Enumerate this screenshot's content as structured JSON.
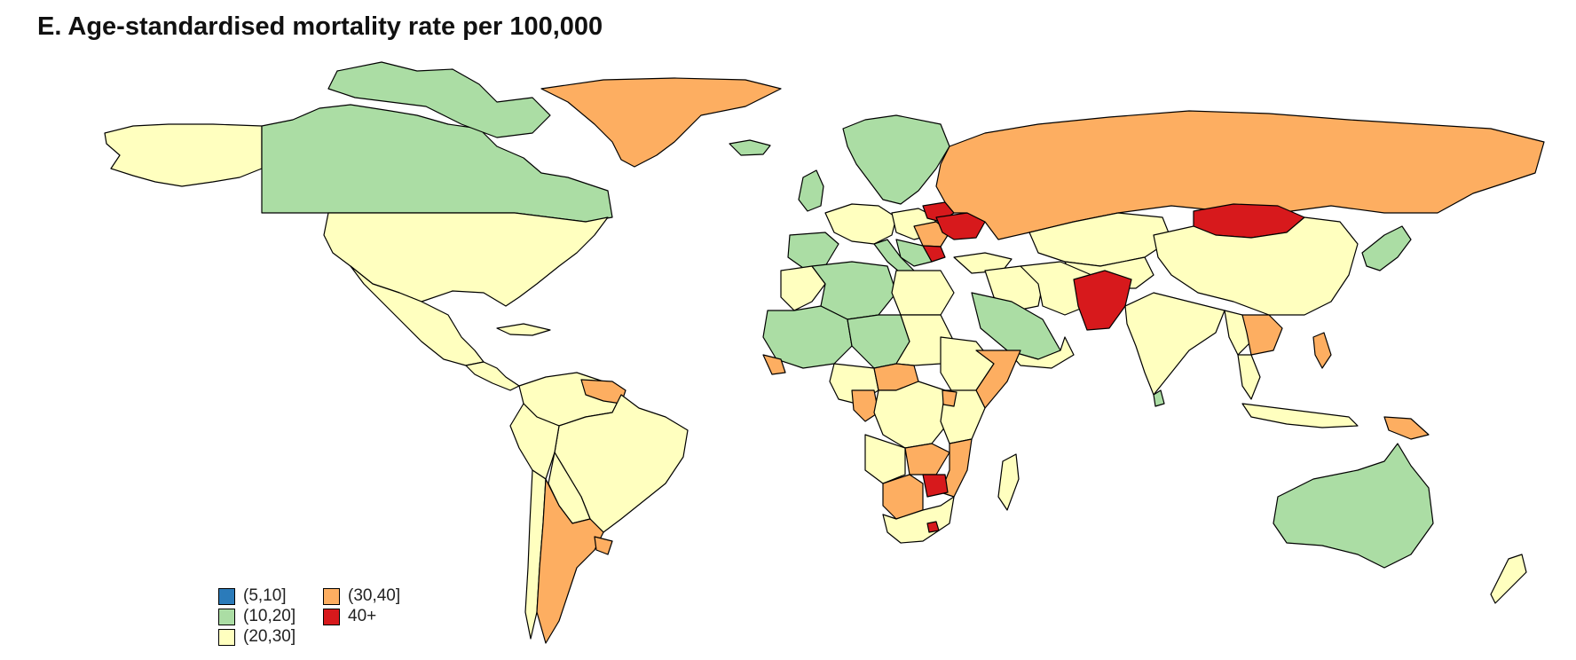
{
  "title": "E. Age-standardised mortality rate per 100,000",
  "legend": [
    {
      "label": "(5,10]",
      "color": "#2b7bba"
    },
    {
      "label": "(10,20]",
      "color": "#abdda4"
    },
    {
      "label": "(20,30]",
      "color": "#ffffbf"
    },
    {
      "label": "(30,40]",
      "color": "#fdae61"
    },
    {
      "label": "40+",
      "color": "#d7191c"
    }
  ]
}
